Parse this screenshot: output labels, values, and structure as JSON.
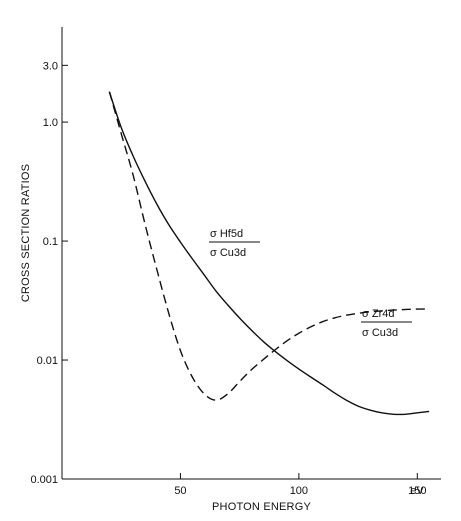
{
  "chart_data": {
    "type": "line",
    "title": "",
    "xlabel": "PHOTON ENERGY",
    "ylabel": "CROSS SECTION RATIOS",
    "xlim": [
      0,
      140
    ],
    "ylim": [
      0.001,
      6.3
    ],
    "y_scale": "log",
    "grid": false,
    "x_ticks": [
      {
        "value": 50,
        "label": "50"
      },
      {
        "value": 100,
        "label": "100"
      },
      {
        "value": 150,
        "label": "150"
      }
    ],
    "x_unit_label": "eV",
    "y_ticks": [
      {
        "value": 0.001,
        "label": "0.001"
      },
      {
        "value": 0.01,
        "label": "0.01"
      },
      {
        "value": 0.1,
        "label": "0.1"
      },
      {
        "value": 1.0,
        "label": "1.0"
      },
      {
        "value": 3.0,
        "label": "3.0"
      }
    ],
    "series": [
      {
        "key": "hf5d",
        "style": "solid",
        "color": "#111111",
        "annotation": {
          "numerator": "σ Hf5d",
          "denominator": "σ Cu3d"
        },
        "points": [
          {
            "x": 20,
            "y": 1.8
          },
          {
            "x": 25,
            "y": 0.9
          },
          {
            "x": 30,
            "y": 0.52
          },
          {
            "x": 35,
            "y": 0.32
          },
          {
            "x": 40,
            "y": 0.205
          },
          {
            "x": 45,
            "y": 0.138
          },
          {
            "x": 50,
            "y": 0.098
          },
          {
            "x": 55,
            "y": 0.071
          },
          {
            "x": 60,
            "y": 0.052
          },
          {
            "x": 65,
            "y": 0.038
          },
          {
            "x": 70,
            "y": 0.029
          },
          {
            "x": 75,
            "y": 0.0225
          },
          {
            "x": 80,
            "y": 0.0178
          },
          {
            "x": 85,
            "y": 0.0143
          },
          {
            "x": 90,
            "y": 0.0118
          },
          {
            "x": 95,
            "y": 0.0099
          },
          {
            "x": 100,
            "y": 0.0084
          },
          {
            "x": 105,
            "y": 0.0072
          },
          {
            "x": 110,
            "y": 0.0062
          },
          {
            "x": 115,
            "y": 0.0053
          },
          {
            "x": 120,
            "y": 0.0046
          },
          {
            "x": 125,
            "y": 0.0041
          },
          {
            "x": 130,
            "y": 0.0038
          },
          {
            "x": 135,
            "y": 0.0036
          },
          {
            "x": 140,
            "y": 0.0035
          },
          {
            "x": 145,
            "y": 0.0035
          },
          {
            "x": 150,
            "y": 0.0036
          },
          {
            "x": 155,
            "y": 0.0037
          }
        ]
      },
      {
        "key": "zr4d",
        "style": "dashed",
        "color": "#111111",
        "annotation": {
          "numerator": "σ Zr4d",
          "denominator": "σ Cu3d"
        },
        "points": [
          {
            "x": 20,
            "y": 1.8
          },
          {
            "x": 25,
            "y": 0.8
          },
          {
            "x": 30,
            "y": 0.36
          },
          {
            "x": 35,
            "y": 0.14
          },
          {
            "x": 40,
            "y": 0.058
          },
          {
            "x": 45,
            "y": 0.025
          },
          {
            "x": 50,
            "y": 0.012
          },
          {
            "x": 55,
            "y": 0.0072
          },
          {
            "x": 60,
            "y": 0.0052
          },
          {
            "x": 65,
            "y": 0.0046
          },
          {
            "x": 70,
            "y": 0.0052
          },
          {
            "x": 75,
            "y": 0.0066
          },
          {
            "x": 80,
            "y": 0.0083
          },
          {
            "x": 85,
            "y": 0.0101
          },
          {
            "x": 90,
            "y": 0.0122
          },
          {
            "x": 95,
            "y": 0.0145
          },
          {
            "x": 100,
            "y": 0.0168
          },
          {
            "x": 105,
            "y": 0.019
          },
          {
            "x": 110,
            "y": 0.021
          },
          {
            "x": 115,
            "y": 0.0226
          },
          {
            "x": 120,
            "y": 0.0238
          },
          {
            "x": 125,
            "y": 0.0247
          },
          {
            "x": 130,
            "y": 0.0254
          },
          {
            "x": 135,
            "y": 0.0259
          },
          {
            "x": 140,
            "y": 0.0263
          },
          {
            "x": 145,
            "y": 0.0266
          },
          {
            "x": 150,
            "y": 0.0268
          },
          {
            "x": 155,
            "y": 0.0269
          }
        ]
      }
    ]
  }
}
